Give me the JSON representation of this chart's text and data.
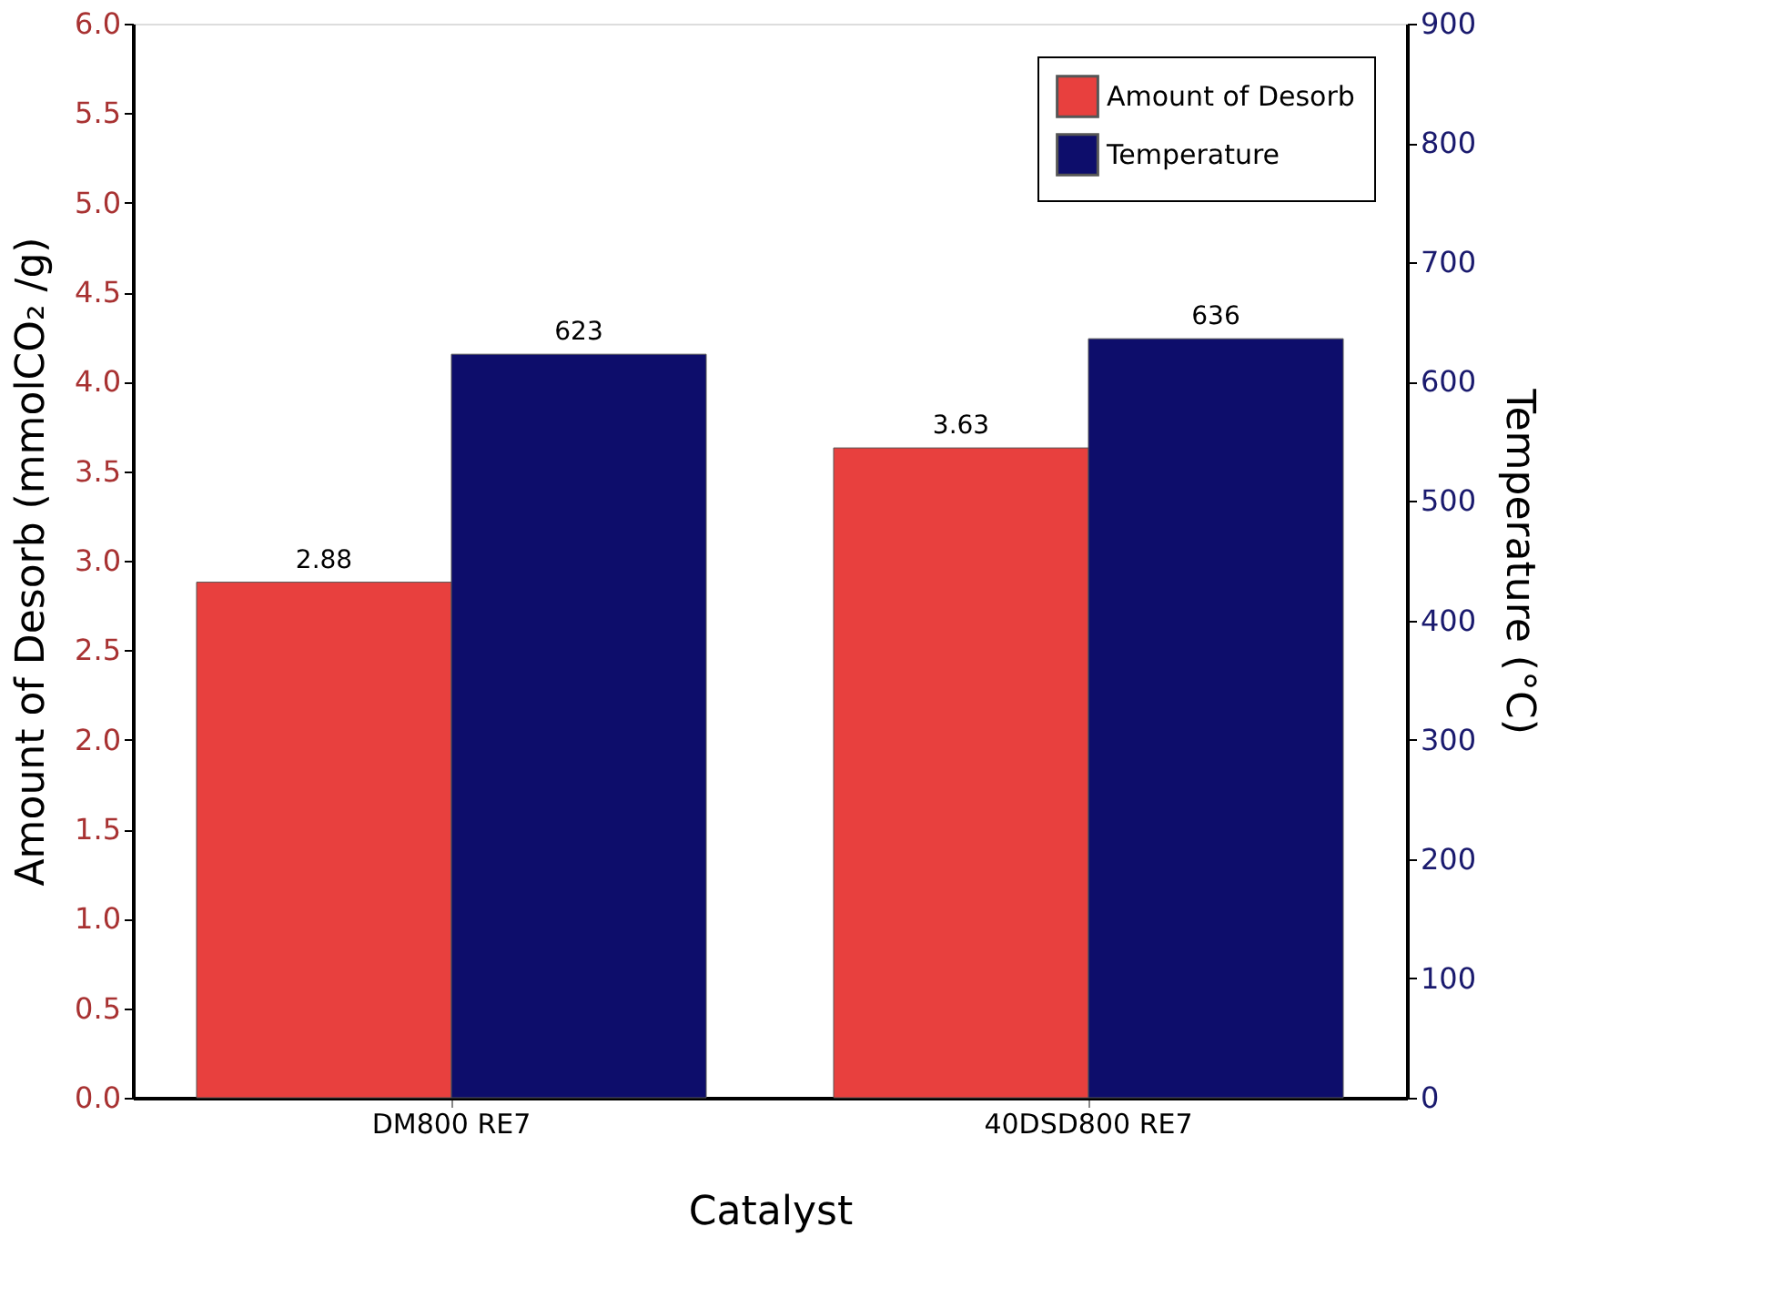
{
  "chart_data": {
    "type": "bar",
    "xlabel": "Catalyst",
    "ylabel": "Amount of Desorb (mmolCO₂ /g)",
    "y2label": "Temperature (°C)",
    "categories": [
      "DM800 RE7",
      "40DSD800 RE7"
    ],
    "series": [
      {
        "name": "Amount of Desorb",
        "color": "#e8403e",
        "values": [
          2.88,
          3.63
        ]
      },
      {
        "name": "Temperature",
        "color": "#0d0d6b",
        "values": [
          623,
          636
        ],
        "axis": "y2"
      }
    ],
    "ylim": [
      0,
      6
    ],
    "yticks": [
      {
        "value": 0,
        "label": "0.0"
      },
      0.5,
      {
        "value": 1,
        "label": "1.0"
      },
      1.5,
      {
        "value": 2,
        "label": "2.0"
      },
      2.5,
      {
        "value": 3,
        "label": "3.0"
      },
      3.5,
      {
        "value": 4,
        "label": "4.0"
      },
      4.5,
      {
        "value": 5,
        "label": "5.0"
      },
      5.5,
      {
        "value": 6,
        "label": "6.0"
      }
    ],
    "y2lim": [
      0,
      900
    ],
    "y2ticks": [
      0,
      100,
      200,
      300,
      400,
      500,
      600,
      700,
      800,
      900
    ],
    "data_labels": true,
    "grid": false,
    "legend": "top right"
  }
}
